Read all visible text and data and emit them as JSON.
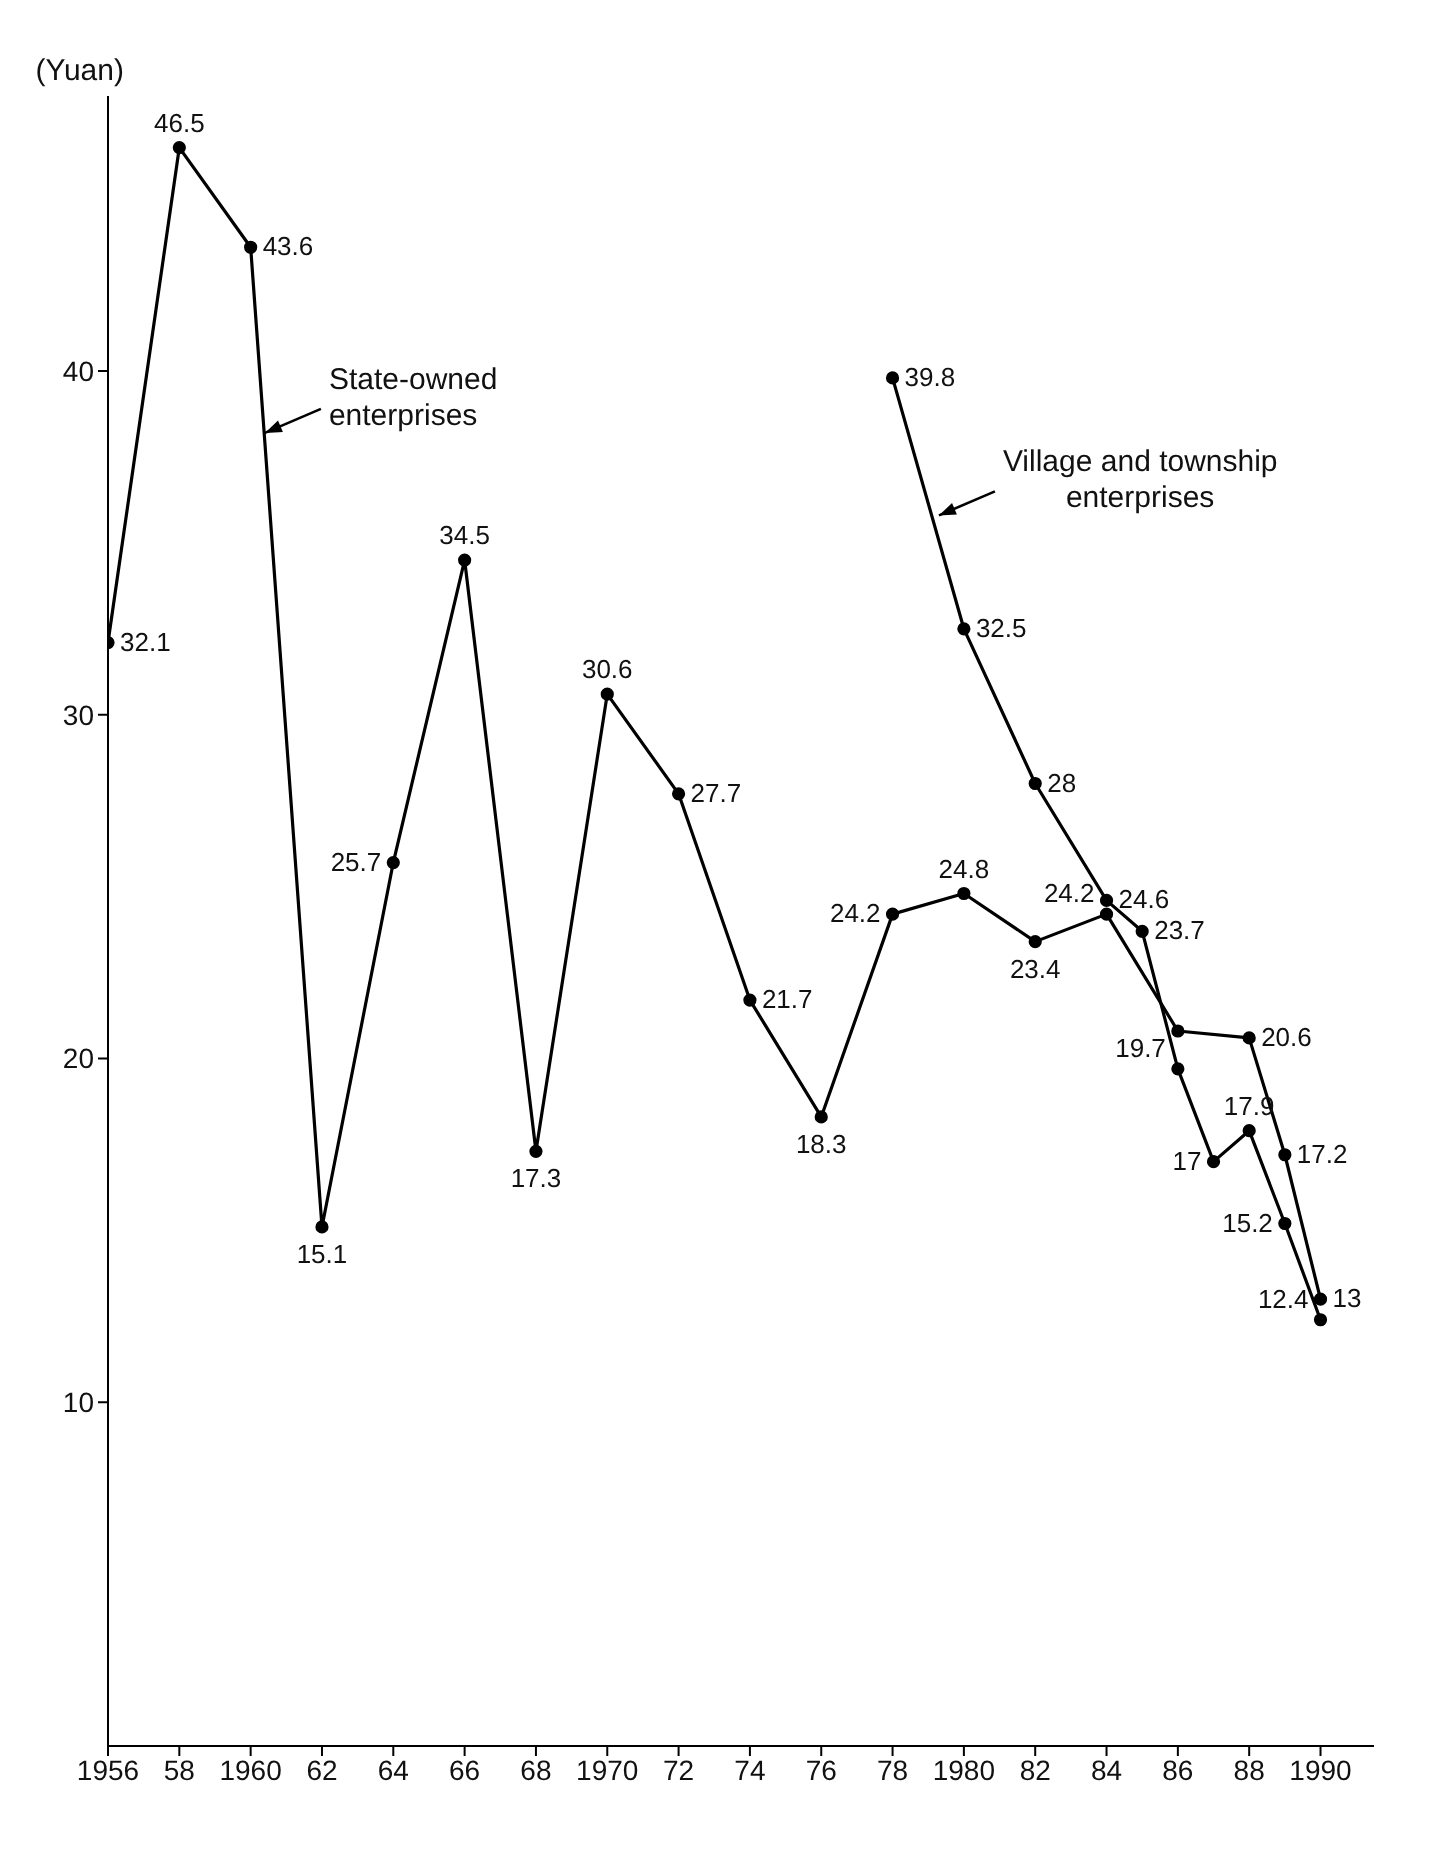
{
  "chart_data": {
    "type": "line",
    "ylabel": "(Yuan)",
    "series": [
      {
        "color": "#000000",
        "x": [
          1956,
          1958,
          1960,
          1962,
          1964,
          1966,
          1968,
          1970,
          1972,
          1974,
          1976,
          1978,
          1980,
          1982,
          1984,
          1985,
          1986,
          1988,
          1989,
          1990
        ],
        "values": [
          32.1,
          46.5,
          43.6,
          15.1,
          25.7,
          34.5,
          17.3,
          30.6,
          27.7,
          21.7,
          18.3,
          24.2,
          24.8,
          23.4,
          24.2,
          null,
          20.8,
          20.6,
          17.2,
          13
        ],
        "value_labels": [
          "32.1",
          "46.5",
          "43.6",
          "15.1",
          "25.7",
          "34.5",
          "17.3",
          "30.6",
          "27.7",
          "21.7",
          "18.3",
          "24.2",
          "24.8",
          "23.4",
          "24.2",
          null,
          null,
          "20.6",
          "17.2",
          "13"
        ]
      },
      {
        "color": "#000000",
        "x": [
          1978,
          1980,
          1982,
          1984,
          1985,
          1986,
          1987,
          1988,
          1989,
          1990
        ],
        "values": [
          39.8,
          32.5,
          28,
          24.6,
          23.7,
          19.7,
          17,
          17.9,
          15.2,
          12.4
        ],
        "value_labels": [
          "39.8",
          "32.5",
          "28",
          "24.6",
          "23.7",
          "19.7",
          "17",
          "17.9",
          "15.2",
          "12.4"
        ]
      }
    ],
    "annotations": [
      {
        "text": "State-owned enterprises",
        "x": 1960.4,
        "y": 38.2
      },
      {
        "text": "Village and township enterprises",
        "x": 1979.3,
        "y": 35.8
      }
    ],
    "xlim": [
      1956,
      1991.5
    ],
    "xticks": [
      {
        "value": 1956,
        "label": "1956"
      },
      {
        "value": 1958,
        "label": "58"
      },
      {
        "value": 1960,
        "label": "1960"
      },
      {
        "value": 1962,
        "label": "62"
      },
      {
        "value": 1964,
        "label": "64"
      },
      {
        "value": 1966,
        "label": "66"
      },
      {
        "value": 1968,
        "label": "68"
      },
      {
        "value": 1970,
        "label": "1970"
      },
      {
        "value": 1972,
        "label": "72"
      },
      {
        "value": 1974,
        "label": "74"
      },
      {
        "value": 1976,
        "label": "76"
      },
      {
        "value": 1978,
        "label": "78"
      },
      {
        "value": 1980,
        "label": "1980"
      },
      {
        "value": 1982,
        "label": "82"
      },
      {
        "value": 1984,
        "label": "84"
      },
      {
        "value": 1986,
        "label": "86"
      },
      {
        "value": 1988,
        "label": "88"
      },
      {
        "value": 1990,
        "label": "1990"
      }
    ],
    "ylim": [
      0,
      48
    ],
    "yticks": [
      10,
      20,
      30,
      40
    ],
    "grid": false,
    "legend": false,
    "marker": "circle",
    "line_style": "solid"
  }
}
